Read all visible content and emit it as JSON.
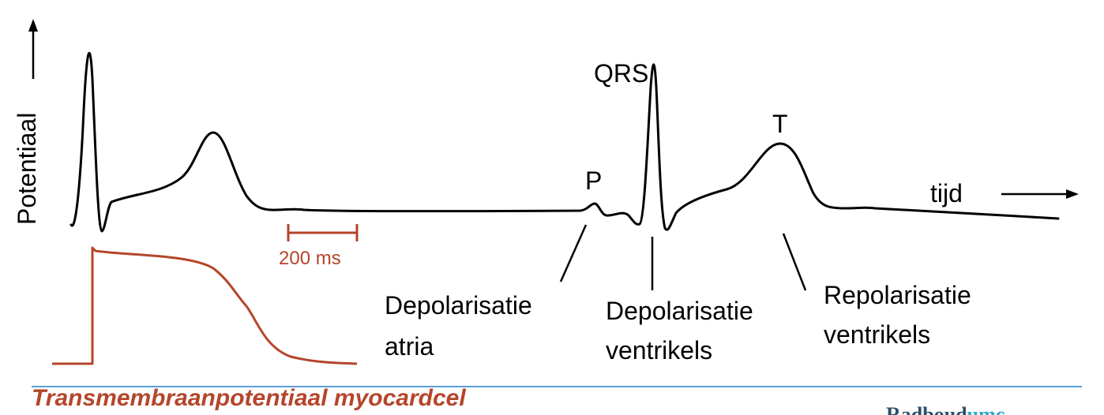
{
  "colors": {
    "ecg_line": "#000000",
    "action_potential": "#b5452a",
    "divider": "#5aa0d6",
    "logo_main": "#2d4f6a",
    "logo_accent": "#2aa9c9"
  },
  "axes": {
    "y_label": "Potentiaal",
    "x_label": "tijd"
  },
  "waves": {
    "p": "P",
    "qrs": "QRS",
    "t": "T"
  },
  "scale_bar": {
    "label": "200 ms"
  },
  "annotations": {
    "atria": [
      "Depolarisatie",
      "atria"
    ],
    "ventricles_depol": [
      "Depolarisatie",
      "ventrikels"
    ],
    "ventricles_repol": [
      "Repolarisatie",
      "ventrikels"
    ]
  },
  "caption": "Transmembraanpotentiaal myocardcel",
  "logo": {
    "main": "Radboud",
    "accent": "umc"
  }
}
